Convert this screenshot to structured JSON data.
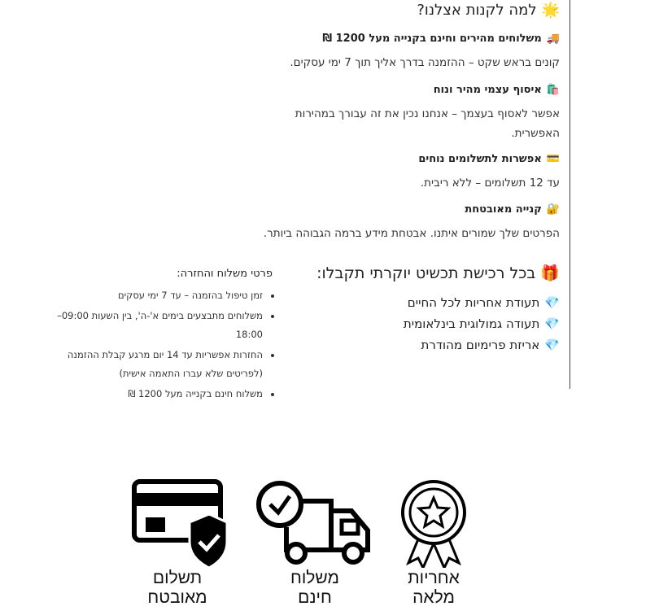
{
  "why": {
    "title": "למה לקנות אצלנו?",
    "title_icon": "sun-icon",
    "items": [
      {
        "icon": "truck-emoji-icon",
        "heading": "משלוחים מהירים וחינם בקנייה מעל 1200 ₪",
        "text": "קונים בראש שקט – ההזמנה בדרך אליך תוך 7 ימי עסקים."
      },
      {
        "icon": "shopping-bag-icon",
        "heading": "איסוף עצמי מהיר ונוח",
        "text": "אפשר לאסוף בעצמך – אנחנו נכין את זה עבורך במהירות האפשרית."
      },
      {
        "icon": "credit-card-emoji-icon",
        "heading": "אפשרות לתשלומים נוחים",
        "text": "עד 12 תשלומים – ללא ריבית."
      },
      {
        "icon": "lock-icon",
        "heading": "קנייה מאובטחת",
        "text": "הפרטים שלך שמורים איתנו. אבטחת מידע ברמה הגבוהה ביותר."
      }
    ]
  },
  "gift": {
    "title": "בכל רכישת תכשיט יוקרתי תקבלו:",
    "items": [
      "תעודת אחריות לכל החיים",
      "תעודה גמולוגית בינלאומית",
      "אריזת פרימיום מהודרת"
    ]
  },
  "shipping": {
    "title": "פרטי משלוח והחזרה:",
    "items": [
      "זמן טיפול בהזמנה – עד 7 ימי עסקים",
      "משלוחים מתבצעים בימים א'-ה', בין השעות 09:00–18:00",
      "החזרות אפשריות עד 14 יום מרגע קבלת ההזמנה (לפריטים שלא עברו התאמה אישית)",
      "משלוח חינם בקנייה מעל 1200 ₪"
    ]
  },
  "badges": [
    {
      "icon": "credit-card-shield-icon",
      "label_1": "תשלום",
      "label_2": "מאובטח"
    },
    {
      "icon": "delivery-truck-clock-icon",
      "label_1": "משלוח",
      "label_2": "חינם"
    },
    {
      "icon": "award-medal-icon",
      "label_1": "אחריות",
      "label_2": "מלאה"
    }
  ]
}
